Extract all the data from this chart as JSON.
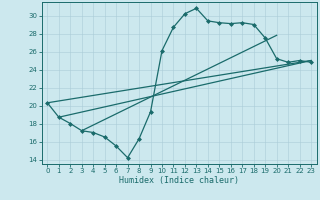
{
  "xlabel": "Humidex (Indice chaleur)",
  "ylabel": "",
  "background_color": "#cce8ee",
  "line_color": "#1a6b6b",
  "xlim": [
    -0.5,
    23.5
  ],
  "ylim": [
    13.5,
    31.5
  ],
  "xticks": [
    0,
    1,
    2,
    3,
    4,
    5,
    6,
    7,
    8,
    9,
    10,
    11,
    12,
    13,
    14,
    15,
    16,
    17,
    18,
    19,
    20,
    21,
    22,
    23
  ],
  "yticks": [
    14,
    16,
    18,
    20,
    22,
    24,
    26,
    28,
    30
  ],
  "series1_x": [
    0,
    1,
    2,
    3,
    4,
    5,
    6,
    7,
    8,
    9,
    10,
    11,
    12,
    13,
    14,
    15,
    16,
    17,
    18,
    19,
    20,
    21,
    22,
    23
  ],
  "series1_y": [
    20.3,
    18.7,
    18.0,
    17.2,
    17.0,
    16.5,
    15.5,
    14.2,
    16.3,
    19.3,
    26.1,
    28.7,
    30.2,
    30.8,
    29.4,
    29.2,
    29.1,
    29.2,
    29.0,
    27.5,
    25.2,
    24.8,
    25.0,
    24.8
  ],
  "series2_x": [
    0,
    23
  ],
  "series2_y": [
    20.3,
    25.0
  ],
  "series3_x": [
    1,
    23
  ],
  "series3_y": [
    18.7,
    25.0
  ],
  "series4_x": [
    3,
    20
  ],
  "series4_y": [
    17.2,
    27.8
  ],
  "marker": "D",
  "markersize": 2.0,
  "linewidth": 0.9
}
